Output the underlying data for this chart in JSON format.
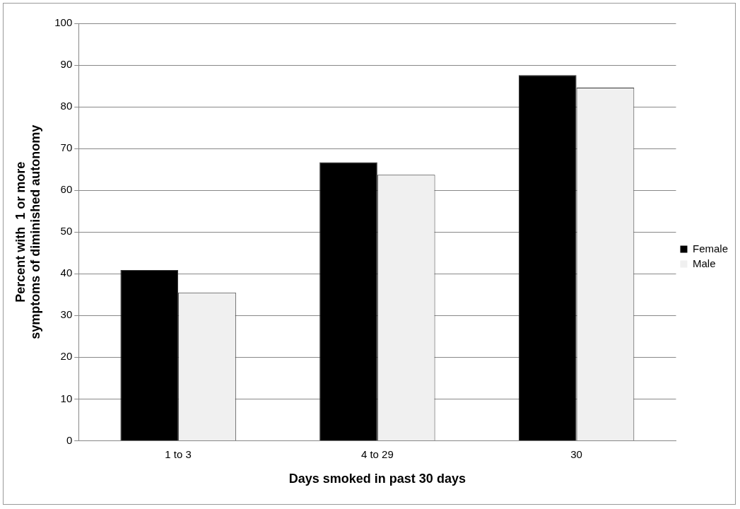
{
  "chart_data": {
    "type": "bar",
    "xlabel": "Days smoked in past 30 days",
    "ylabel": "Percent with  1 or more symptoms of diminished autonomy",
    "categories": [
      "1 to 3",
      "4 to 29",
      "30"
    ],
    "series": [
      {
        "name": "Female",
        "color": "#000000",
        "values": [
          40.9,
          66.7,
          87.6
        ]
      },
      {
        "name": "Male",
        "color": "#f0f0f0",
        "values": [
          35.5,
          63.7,
          84.6
        ]
      }
    ],
    "ylim": [
      0,
      100
    ],
    "yticks": [
      0,
      10,
      20,
      30,
      40,
      50,
      60,
      70,
      80,
      90,
      100
    ],
    "grid": "y",
    "legend": "right"
  }
}
